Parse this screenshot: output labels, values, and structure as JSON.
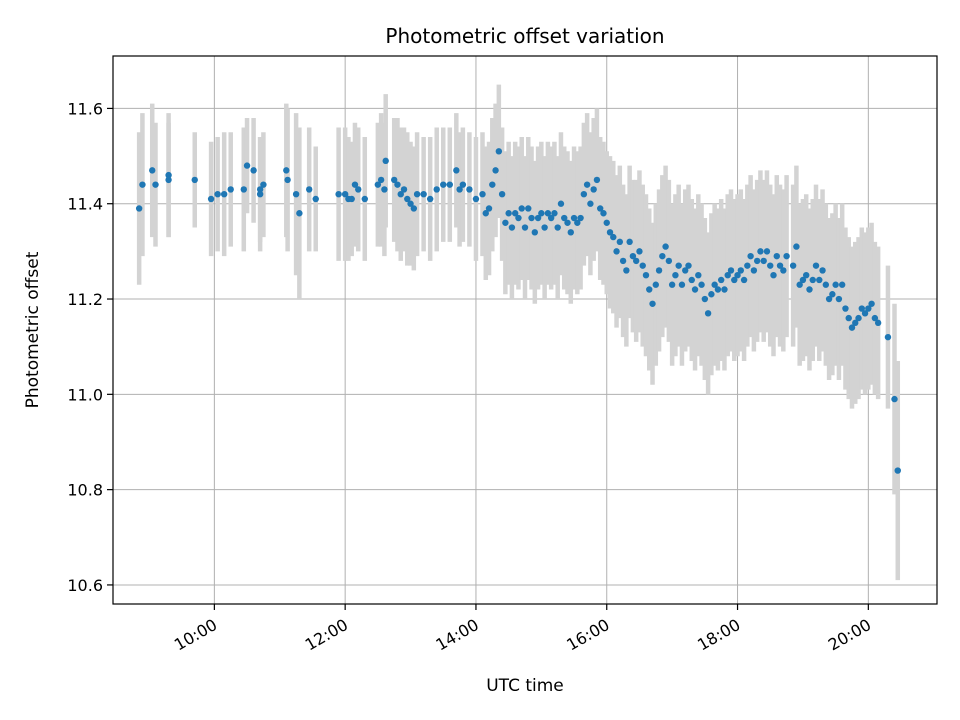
{
  "chart_data": {
    "type": "scatter",
    "title": "Photometric offset variation",
    "xlabel": "UTC time",
    "ylabel": "Photometric offset",
    "x_unit": "hours UTC",
    "xlim": [
      8.45,
      21.05
    ],
    "ylim": [
      10.56,
      11.71
    ],
    "x_ticks": [
      {
        "value": 10,
        "label": "10:00"
      },
      {
        "value": 12,
        "label": "12:00"
      },
      {
        "value": 14,
        "label": "14:00"
      },
      {
        "value": 16,
        "label": "16:00"
      },
      {
        "value": 18,
        "label": "18:00"
      },
      {
        "value": 20,
        "label": "20:00"
      }
    ],
    "y_ticks": [
      {
        "value": 10.6,
        "label": "10.6"
      },
      {
        "value": 10.8,
        "label": "10.8"
      },
      {
        "value": 11.0,
        "label": "11.0"
      },
      {
        "value": 11.2,
        "label": "11.2"
      },
      {
        "value": 11.4,
        "label": "11.4"
      },
      {
        "value": 11.6,
        "label": "11.6"
      }
    ],
    "grid": true,
    "colors": {
      "points": "#1f77b4",
      "errorbars": "#d3d3d3",
      "grid": "#b0b0b0"
    },
    "series": [
      {
        "points": [
          [
            8.85,
            11.39,
            0.16
          ],
          [
            8.9,
            11.44,
            0.15
          ],
          [
            9.05,
            11.47,
            0.14
          ],
          [
            9.1,
            11.44,
            0.13
          ],
          [
            9.3,
            11.46,
            0.13
          ],
          [
            9.3,
            11.45,
            0.12
          ],
          [
            9.7,
            11.45,
            0.1
          ],
          [
            9.95,
            11.41,
            0.12
          ],
          [
            10.05,
            11.42,
            0.12
          ],
          [
            10.15,
            11.42,
            0.13
          ],
          [
            10.25,
            11.43,
            0.12
          ],
          [
            10.45,
            11.43,
            0.13
          ],
          [
            10.5,
            11.48,
            0.1
          ],
          [
            10.6,
            11.47,
            0.11
          ],
          [
            10.7,
            11.42,
            0.12
          ],
          [
            10.7,
            11.43,
            0.11
          ],
          [
            10.75,
            11.44,
            0.11
          ],
          [
            11.1,
            11.47,
            0.14
          ],
          [
            11.12,
            11.45,
            0.15
          ],
          [
            11.25,
            11.42,
            0.17
          ],
          [
            11.3,
            11.38,
            0.18
          ],
          [
            11.45,
            11.43,
            0.13
          ],
          [
            11.55,
            11.41,
            0.11
          ],
          [
            11.9,
            11.42,
            0.14
          ],
          [
            12.0,
            11.42,
            0.14
          ],
          [
            12.05,
            11.41,
            0.13
          ],
          [
            12.1,
            11.41,
            0.12
          ],
          [
            12.15,
            11.44,
            0.13
          ],
          [
            12.2,
            11.43,
            0.13
          ],
          [
            12.3,
            11.41,
            0.13
          ],
          [
            12.5,
            11.44,
            0.13
          ],
          [
            12.55,
            11.45,
            0.14
          ],
          [
            12.6,
            11.43,
            0.14
          ],
          [
            12.62,
            11.49,
            0.14
          ],
          [
            12.75,
            11.45,
            0.13
          ],
          [
            12.8,
            11.44,
            0.14
          ],
          [
            12.85,
            11.42,
            0.14
          ],
          [
            12.9,
            11.43,
            0.13
          ],
          [
            12.95,
            11.41,
            0.14
          ],
          [
            13.0,
            11.4,
            0.13
          ],
          [
            13.05,
            11.39,
            0.13
          ],
          [
            13.1,
            11.42,
            0.13
          ],
          [
            13.2,
            11.42,
            0.12
          ],
          [
            13.3,
            11.41,
            0.13
          ],
          [
            13.4,
            11.43,
            0.13
          ],
          [
            13.5,
            11.44,
            0.12
          ],
          [
            13.6,
            11.44,
            0.12
          ],
          [
            13.7,
            11.47,
            0.12
          ],
          [
            13.75,
            11.43,
            0.12
          ],
          [
            13.8,
            11.44,
            0.12
          ],
          [
            13.9,
            11.43,
            0.12
          ],
          [
            14.0,
            11.41,
            0.13
          ],
          [
            14.1,
            11.42,
            0.13
          ],
          [
            14.15,
            11.38,
            0.14
          ],
          [
            14.2,
            11.39,
            0.14
          ],
          [
            14.25,
            11.44,
            0.14
          ],
          [
            14.3,
            11.47,
            0.14
          ],
          [
            14.35,
            11.51,
            0.14
          ],
          [
            14.4,
            11.42,
            0.14
          ],
          [
            14.45,
            11.36,
            0.15
          ],
          [
            14.5,
            11.38,
            0.15
          ],
          [
            14.55,
            11.35,
            0.15
          ],
          [
            14.6,
            11.38,
            0.15
          ],
          [
            14.65,
            11.37,
            0.15
          ],
          [
            14.7,
            11.39,
            0.15
          ],
          [
            14.75,
            11.35,
            0.15
          ],
          [
            14.8,
            11.39,
            0.15
          ],
          [
            14.85,
            11.37,
            0.15
          ],
          [
            14.9,
            11.34,
            0.15
          ],
          [
            14.95,
            11.37,
            0.15
          ],
          [
            15.0,
            11.38,
            0.15
          ],
          [
            15.05,
            11.35,
            0.15
          ],
          [
            15.1,
            11.38,
            0.15
          ],
          [
            15.15,
            11.37,
            0.15
          ],
          [
            15.2,
            11.38,
            0.15
          ],
          [
            15.25,
            11.35,
            0.15
          ],
          [
            15.3,
            11.4,
            0.15
          ],
          [
            15.35,
            11.37,
            0.15
          ],
          [
            15.4,
            11.36,
            0.15
          ],
          [
            15.45,
            11.34,
            0.15
          ],
          [
            15.5,
            11.37,
            0.15
          ],
          [
            15.55,
            11.36,
            0.15
          ],
          [
            15.6,
            11.37,
            0.15
          ],
          [
            15.65,
            11.42,
            0.15
          ],
          [
            15.7,
            11.44,
            0.15
          ],
          [
            15.75,
            11.4,
            0.15
          ],
          [
            15.8,
            11.43,
            0.15
          ],
          [
            15.85,
            11.45,
            0.15
          ],
          [
            15.9,
            11.39,
            0.15
          ],
          [
            15.95,
            11.38,
            0.15
          ],
          [
            16.0,
            11.36,
            0.15
          ],
          [
            16.05,
            11.34,
            0.16
          ],
          [
            16.1,
            11.33,
            0.16
          ],
          [
            16.15,
            11.3,
            0.16
          ],
          [
            16.2,
            11.32,
            0.16
          ],
          [
            16.25,
            11.28,
            0.16
          ],
          [
            16.3,
            11.26,
            0.16
          ],
          [
            16.35,
            11.32,
            0.16
          ],
          [
            16.4,
            11.29,
            0.16
          ],
          [
            16.45,
            11.28,
            0.17
          ],
          [
            16.5,
            11.3,
            0.17
          ],
          [
            16.55,
            11.27,
            0.17
          ],
          [
            16.6,
            11.25,
            0.17
          ],
          [
            16.65,
            11.22,
            0.17
          ],
          [
            16.7,
            11.19,
            0.17
          ],
          [
            16.75,
            11.23,
            0.17
          ],
          [
            16.8,
            11.26,
            0.17
          ],
          [
            16.85,
            11.29,
            0.17
          ],
          [
            16.9,
            11.31,
            0.17
          ],
          [
            16.95,
            11.28,
            0.17
          ],
          [
            17.0,
            11.23,
            0.17
          ],
          [
            17.05,
            11.25,
            0.17
          ],
          [
            17.1,
            11.27,
            0.17
          ],
          [
            17.15,
            11.23,
            0.17
          ],
          [
            17.2,
            11.26,
            0.17
          ],
          [
            17.25,
            11.27,
            0.17
          ],
          [
            17.3,
            11.24,
            0.17
          ],
          [
            17.35,
            11.22,
            0.17
          ],
          [
            17.4,
            11.25,
            0.17
          ],
          [
            17.45,
            11.23,
            0.17
          ],
          [
            17.5,
            11.2,
            0.17
          ],
          [
            17.55,
            11.17,
            0.17
          ],
          [
            17.6,
            11.21,
            0.17
          ],
          [
            17.65,
            11.23,
            0.17
          ],
          [
            17.7,
            11.22,
            0.17
          ],
          [
            17.75,
            11.24,
            0.17
          ],
          [
            17.8,
            11.22,
            0.17
          ],
          [
            17.85,
            11.25,
            0.17
          ],
          [
            17.9,
            11.26,
            0.17
          ],
          [
            17.95,
            11.24,
            0.17
          ],
          [
            18.0,
            11.25,
            0.17
          ],
          [
            18.05,
            11.26,
            0.17
          ],
          [
            18.1,
            11.24,
            0.17
          ],
          [
            18.15,
            11.27,
            0.17
          ],
          [
            18.2,
            11.29,
            0.17
          ],
          [
            18.25,
            11.26,
            0.17
          ],
          [
            18.3,
            11.28,
            0.17
          ],
          [
            18.35,
            11.3,
            0.17
          ],
          [
            18.4,
            11.28,
            0.17
          ],
          [
            18.45,
            11.3,
            0.17
          ],
          [
            18.5,
            11.27,
            0.17
          ],
          [
            18.55,
            11.25,
            0.17
          ],
          [
            18.6,
            11.29,
            0.17
          ],
          [
            18.65,
            11.27,
            0.17
          ],
          [
            18.7,
            11.26,
            0.17
          ],
          [
            18.75,
            11.29,
            0.17
          ],
          [
            18.85,
            11.27,
            0.17
          ],
          [
            18.9,
            11.31,
            0.17
          ],
          [
            18.95,
            11.23,
            0.17
          ],
          [
            19.0,
            11.24,
            0.17
          ],
          [
            19.05,
            11.25,
            0.17
          ],
          [
            19.1,
            11.22,
            0.17
          ],
          [
            19.15,
            11.24,
            0.17
          ],
          [
            19.2,
            11.27,
            0.17
          ],
          [
            19.25,
            11.24,
            0.17
          ],
          [
            19.3,
            11.26,
            0.17
          ],
          [
            19.35,
            11.23,
            0.17
          ],
          [
            19.4,
            11.2,
            0.17
          ],
          [
            19.45,
            11.21,
            0.17
          ],
          [
            19.5,
            11.23,
            0.17
          ],
          [
            19.55,
            11.2,
            0.17
          ],
          [
            19.6,
            11.23,
            0.17
          ],
          [
            19.65,
            11.18,
            0.17
          ],
          [
            19.7,
            11.16,
            0.17
          ],
          [
            19.75,
            11.14,
            0.17
          ],
          [
            19.8,
            11.15,
            0.17
          ],
          [
            19.85,
            11.16,
            0.17
          ],
          [
            19.9,
            11.18,
            0.17
          ],
          [
            19.95,
            11.17,
            0.17
          ],
          [
            20.0,
            11.18,
            0.17
          ],
          [
            20.05,
            11.19,
            0.17
          ],
          [
            20.1,
            11.16,
            0.16
          ],
          [
            20.15,
            11.15,
            0.16
          ],
          [
            20.3,
            11.12,
            0.15
          ],
          [
            20.4,
            10.99,
            0.2
          ],
          [
            20.45,
            10.84,
            0.23
          ]
        ]
      }
    ]
  }
}
